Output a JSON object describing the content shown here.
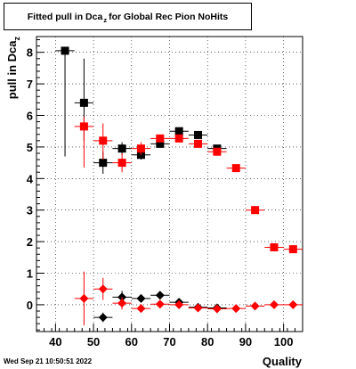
{
  "title": {
    "prefix": "Fitted pull in Dca",
    "subscript": "z",
    "suffix": "for Global Rec Pion NoHits"
  },
  "footer": {
    "timestamp": "Wed Sep 21 10:50:51 2022"
  },
  "chart_data": {
    "type": "scatter",
    "title": "Fitted pull in Dca_z for Global Rec Pion NoHits",
    "xlabel": "Quality",
    "ylabel": {
      "main": "pull in Dca",
      "subscript": "z"
    },
    "xlim": [
      35,
      105
    ],
    "ylim": [
      -0.85,
      8.5
    ],
    "xticks": [
      40,
      50,
      60,
      70,
      80,
      90,
      100
    ],
    "yticks": [
      0,
      1,
      2,
      3,
      4,
      5,
      6,
      7,
      8
    ],
    "grid": true,
    "colors": {
      "black_series": "#000000",
      "red_series": "#ff0000"
    },
    "series": [
      {
        "marker": "square",
        "color": "#000000",
        "points": [
          {
            "x": 42.5,
            "y": 8.05,
            "yerr": [
              3.35,
              0
            ]
          },
          {
            "x": 47.5,
            "y": 6.4,
            "yerr": [
              1.2,
              1.4
            ]
          },
          {
            "x": 52.5,
            "y": 4.5,
            "yerr": [
              0.35,
              0.35
            ]
          },
          {
            "x": 57.5,
            "y": 4.95,
            "yerr": [
              0.2,
              0.2
            ]
          },
          {
            "x": 62.5,
            "y": 4.75,
            "yerr": [
              0.15,
              0.15
            ]
          },
          {
            "x": 67.5,
            "y": 5.1,
            "yerr": [
              0.1,
              0.1
            ]
          },
          {
            "x": 72.5,
            "y": 5.5,
            "yerr": [
              0.05,
              0.05
            ]
          },
          {
            "x": 77.5,
            "y": 5.38,
            "yerr": [
              0.05,
              0.05
            ]
          },
          {
            "x": 82.5,
            "y": 4.95,
            "yerr": [
              0.03,
              0.03
            ]
          }
        ]
      },
      {
        "marker": "square",
        "color": "#ff0000",
        "points": [
          {
            "x": 47.5,
            "y": 5.65,
            "yerr": [
              1.3,
              0.3
            ]
          },
          {
            "x": 52.5,
            "y": 5.2,
            "yerr": [
              0.6,
              0.55
            ]
          },
          {
            "x": 57.5,
            "y": 4.5,
            "yerr": [
              0.3,
              0.3
            ]
          },
          {
            "x": 62.5,
            "y": 4.95,
            "yerr": [
              0.2,
              0.2
            ]
          },
          {
            "x": 67.5,
            "y": 5.27,
            "yerr": [
              0.1,
              0.1
            ]
          },
          {
            "x": 72.5,
            "y": 5.27,
            "yerr": [
              0.06,
              0.06
            ]
          },
          {
            "x": 77.5,
            "y": 5.1,
            "yerr": [
              0.05,
              0.05
            ]
          },
          {
            "x": 82.5,
            "y": 4.85,
            "yerr": [
              0.04,
              0.04
            ]
          },
          {
            "x": 87.5,
            "y": 4.33,
            "yerr": [
              0.03,
              0.03
            ]
          },
          {
            "x": 92.5,
            "y": 3.0,
            "yerr": [
              0.03,
              0.03
            ]
          },
          {
            "x": 97.5,
            "y": 1.82,
            "yerr": [
              0.03,
              0.03
            ]
          },
          {
            "x": 102.5,
            "y": 1.76,
            "yerr": [
              0.03,
              0.03
            ]
          }
        ]
      },
      {
        "marker": "diamond",
        "color": "#000000",
        "points": [
          {
            "x": 52.5,
            "y": -0.4,
            "yerr": [
              0.15,
              0.15
            ]
          },
          {
            "x": 57.5,
            "y": 0.24,
            "yerr": [
              0.2,
              0.2
            ]
          },
          {
            "x": 62.5,
            "y": 0.2,
            "yerr": [
              0.1,
              0.1
            ]
          },
          {
            "x": 67.5,
            "y": 0.3,
            "yerr": [
              0.06,
              0.06
            ]
          },
          {
            "x": 72.5,
            "y": 0.08,
            "yerr": [
              0.04,
              0.04
            ]
          },
          {
            "x": 77.5,
            "y": -0.08,
            "yerr": [
              0.03,
              0.03
            ]
          },
          {
            "x": 82.5,
            "y": -0.1,
            "yerr": [
              0.03,
              0.03
            ]
          }
        ]
      },
      {
        "marker": "diamond",
        "color": "#ff0000",
        "points": [
          {
            "x": 47.5,
            "y": 0.2,
            "yerr": [
              0.85,
              0.85
            ]
          },
          {
            "x": 52.5,
            "y": 0.5,
            "yerr": [
              0.35,
              0.35
            ]
          },
          {
            "x": 57.5,
            "y": 0.05,
            "yerr": [
              0.2,
              0.2
            ]
          },
          {
            "x": 62.5,
            "y": -0.12,
            "yerr": [
              0.12,
              0.12
            ]
          },
          {
            "x": 67.5,
            "y": 0.02,
            "yerr": [
              0.07,
              0.07
            ]
          },
          {
            "x": 72.5,
            "y": 0.0,
            "yerr": [
              0.05,
              0.05
            ]
          },
          {
            "x": 77.5,
            "y": -0.1,
            "yerr": [
              0.04,
              0.04
            ]
          },
          {
            "x": 82.5,
            "y": -0.13,
            "yerr": [
              0.03,
              0.03
            ]
          },
          {
            "x": 87.5,
            "y": -0.12,
            "yerr": [
              0.03,
              0.03
            ]
          },
          {
            "x": 92.5,
            "y": -0.04,
            "yerr": [
              0.03,
              0.03
            ]
          },
          {
            "x": 97.5,
            "y": 0.0,
            "yerr": [
              0.03,
              0.03
            ]
          },
          {
            "x": 102.5,
            "y": 0.0,
            "yerr": [
              0.03,
              0.03
            ]
          }
        ]
      }
    ]
  }
}
